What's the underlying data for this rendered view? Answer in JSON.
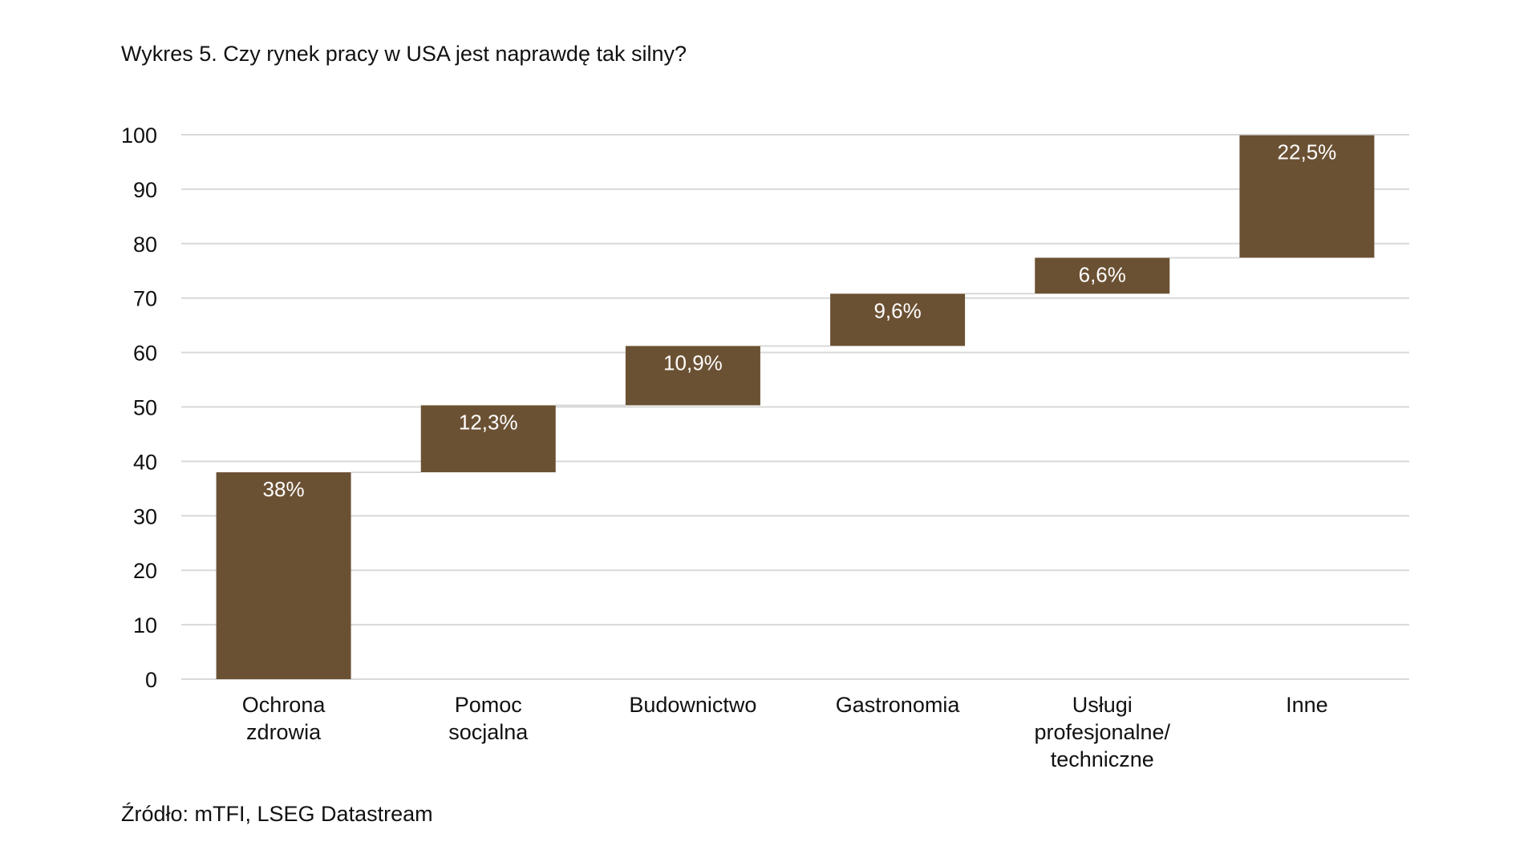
{
  "title": "Wykres 5. Czy rynek pracy w USA jest naprawdę tak silny?",
  "source": "Źródło: mTFI, LSEG Datastream",
  "colors": {
    "bar": "#6b5133",
    "grid": "#d9d9d9",
    "label_inside": "#ffffff"
  },
  "chart_data": {
    "type": "bar",
    "subtype": "waterfall",
    "title": "Wykres 5. Czy rynek pracy w USA jest naprawdę tak silny?",
    "xlabel": "",
    "ylabel": "",
    "ylim": [
      0,
      100
    ],
    "yticks": [
      0,
      10,
      20,
      30,
      40,
      50,
      60,
      70,
      80,
      90,
      100
    ],
    "grid": true,
    "legend": "none",
    "categories": [
      [
        "Ochrona",
        "zdrowia"
      ],
      [
        "Pomoc",
        "socjalna"
      ],
      [
        "Budownictwo"
      ],
      [
        "Gastronomia"
      ],
      [
        "Usługi",
        "profesjonalne/",
        "techniczne"
      ],
      [
        "Inne"
      ]
    ],
    "values": [
      38,
      12.3,
      10.9,
      9.6,
      6.6,
      22.5
    ],
    "bases": [
      0,
      38,
      50.3,
      61.2,
      70.8,
      77.4
    ],
    "data_labels": [
      "38%",
      "12,3%",
      "10,9%",
      "9,6%",
      "6,6%",
      "22,5%"
    ]
  }
}
